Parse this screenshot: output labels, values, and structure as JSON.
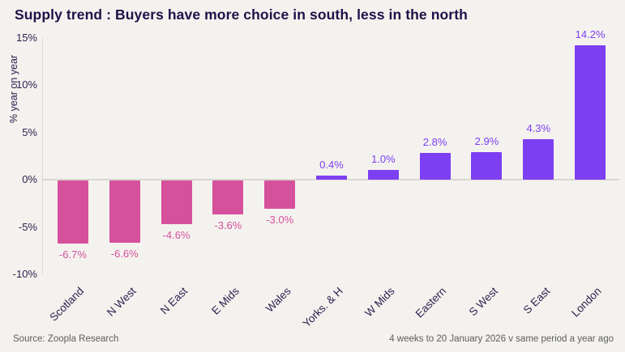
{
  "page": {
    "title": "Supply trend : Buyers have more choice in south, less in the north",
    "footer_left": "Source: Zoopla Research",
    "footer_right": "4 weeks to 20 January 2026 v same period a year ago"
  },
  "chart_data": {
    "type": "bar",
    "title": "Supply trend : Buyers have more choice in south, less in the north",
    "categories": [
      "Scotland",
      "N West",
      "N East",
      "E Mids",
      "Wales",
      "Yorks. & H",
      "W Mids",
      "Eastern",
      "S West",
      "S East",
      "London"
    ],
    "values": [
      -6.7,
      -6.6,
      -4.6,
      -3.6,
      -3.0,
      0.4,
      1.0,
      2.8,
      2.9,
      4.3,
      14.2
    ],
    "value_labels": [
      "-6.7%",
      "-6.6%",
      "-4.6%",
      "-3.6%",
      "-3.0%",
      "0.4%",
      "1.0%",
      "2.8%",
      "2.9%",
      "4.3%",
      "14.2%"
    ],
    "xlabel": "",
    "ylabel": "% year on year",
    "ylim": [
      -10,
      15
    ],
    "yticks": [
      15,
      10,
      5,
      0,
      -5,
      -10
    ],
    "ytick_labels": [
      "15%",
      "10%",
      "5%",
      "0%",
      "-5%",
      "-10%"
    ],
    "grid": "zero-line-only",
    "legend": "none",
    "colors": {
      "positive_bar": "#7d3ff2",
      "negative_bar": "#d5519c",
      "positive_label": "#7d3ff2",
      "negative_label": "#d5519c",
      "axis_text": "#2b2150",
      "title": "#1e1248",
      "background": "#f4f2ee"
    }
  }
}
